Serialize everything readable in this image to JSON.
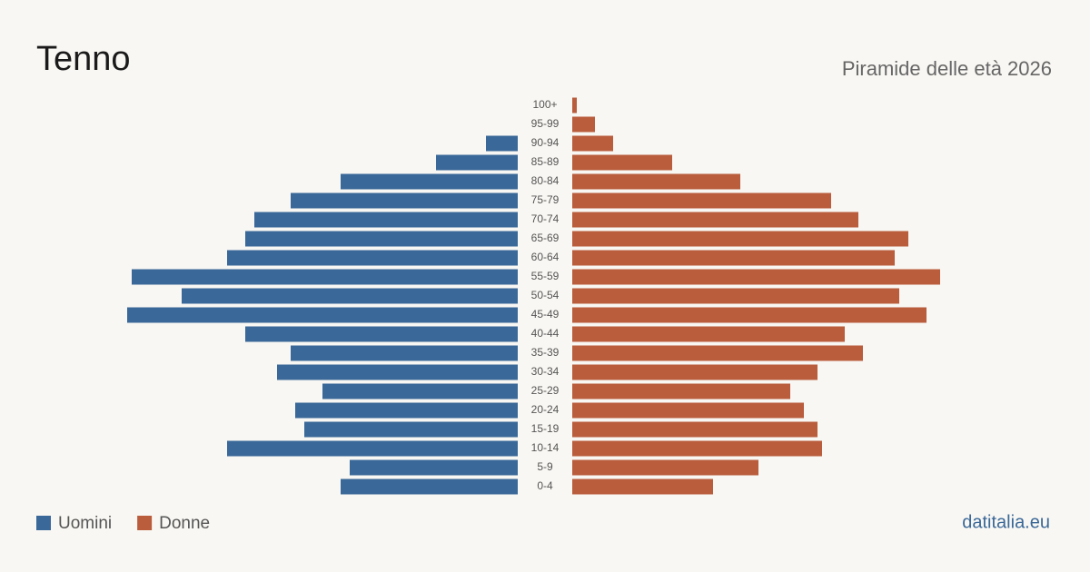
{
  "chart_data": {
    "type": "pyramid",
    "title": "Tenno",
    "subtitle": "Piramide delle età 2026",
    "categories": [
      "100+",
      "95-99",
      "90-94",
      "85-89",
      "80-84",
      "75-79",
      "70-74",
      "65-69",
      "60-64",
      "55-59",
      "50-54",
      "45-49",
      "40-44",
      "35-39",
      "30-34",
      "25-29",
      "20-24",
      "15-19",
      "10-14",
      "5-9",
      "0-4"
    ],
    "series": [
      {
        "name": "Uomini",
        "color": "#3a6898",
        "values": [
          0,
          0,
          7,
          18,
          39,
          50,
          58,
          60,
          64,
          85,
          74,
          86,
          60,
          50,
          53,
          43,
          49,
          47,
          64,
          37,
          39
        ]
      },
      {
        "name": "Donne",
        "color": "#b95d3d",
        "values": [
          1,
          5,
          9,
          22,
          37,
          57,
          63,
          74,
          71,
          81,
          72,
          78,
          60,
          64,
          54,
          48,
          51,
          54,
          55,
          41,
          31
        ]
      }
    ],
    "source": "datitalia.eu"
  }
}
